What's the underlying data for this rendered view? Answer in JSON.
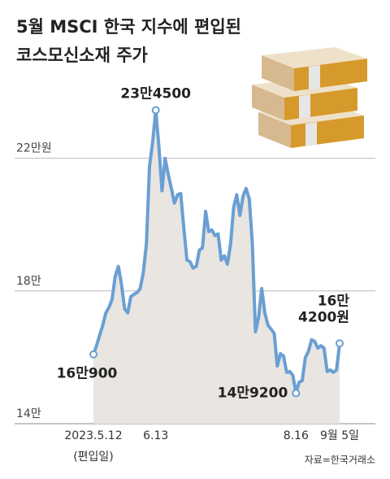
{
  "chart_data": {
    "type": "area",
    "title": [
      "5월 MSCI 한국 지수에 편입된",
      "코스모신소재 주가"
    ],
    "source": "자료=한국거래소",
    "annotations": [
      "(편입일)"
    ],
    "categories": [
      "2023.5.12",
      null,
      null,
      null,
      null,
      null,
      null,
      null,
      null,
      null,
      null,
      null,
      null,
      null,
      null,
      null,
      null,
      null,
      null,
      null,
      "6.13",
      null,
      null,
      null,
      null,
      null,
      null,
      null,
      null,
      null,
      null,
      null,
      null,
      null,
      null,
      null,
      null,
      null,
      null,
      null,
      null,
      null,
      null,
      null,
      null,
      null,
      null,
      null,
      null,
      null,
      null,
      null,
      null,
      null,
      null,
      null,
      null,
      null,
      null,
      null,
      null,
      null,
      null,
      null,
      null,
      "8.16",
      null,
      null,
      null,
      null,
      null,
      null,
      null,
      null,
      null,
      null,
      null,
      null,
      null,
      "9월 5일"
    ],
    "series": [
      {
        "name": "코스모신소재 주가",
        "color": "#6a9fd3",
        "fill": "#e9e5e1",
        "values": [
          160900,
          163500,
          166700,
          169700,
          173400,
          175100,
          177500,
          184400,
          187400,
          182000,
          174600,
          173400,
          178300,
          179000,
          179500,
          180700,
          185600,
          194200,
          217500,
          224900,
          234500,
          223700,
          210200,
          220000,
          215100,
          210900,
          206500,
          209000,
          209400,
          199100,
          189300,
          188800,
          186900,
          187400,
          192300,
          193000,
          204000,
          197900,
          198400,
          196700,
          197200,
          189300,
          190600,
          188100,
          194200,
          205300,
          209000,
          202800,
          208500,
          210900,
          207800,
          194200,
          167700,
          172100,
          180700,
          173400,
          169700,
          168500,
          167200,
          157400,
          161100,
          160400,
          155500,
          155700,
          154500,
          149200,
          152500,
          153000,
          159900,
          161800,
          165300,
          164800,
          162800,
          163500,
          162800,
          155700,
          156200,
          155500,
          156200,
          164200
        ],
        "value_labels": [
          "16만900",
          null,
          null,
          null,
          null,
          null,
          null,
          null,
          null,
          null,
          null,
          null,
          null,
          null,
          null,
          null,
          null,
          null,
          null,
          null,
          "23만4500",
          null,
          null,
          null,
          null,
          null,
          null,
          null,
          null,
          null,
          null,
          null,
          null,
          null,
          null,
          null,
          null,
          null,
          null,
          null,
          null,
          null,
          null,
          null,
          null,
          null,
          null,
          null,
          null,
          null,
          null,
          null,
          null,
          null,
          null,
          null,
          null,
          null,
          null,
          null,
          null,
          null,
          null,
          null,
          null,
          "14만9200",
          null,
          null,
          null,
          null,
          null,
          null,
          null,
          null,
          null,
          null,
          null,
          null,
          null,
          "16만\n4200원"
        ]
      }
    ],
    "ylim": [
      140000,
      240000
    ],
    "yticks": [
      {
        "value": 140000,
        "label": "14만"
      },
      {
        "value": 180000,
        "label": "18만"
      },
      {
        "value": 220000,
        "label": "22만원"
      }
    ],
    "grid": true
  }
}
